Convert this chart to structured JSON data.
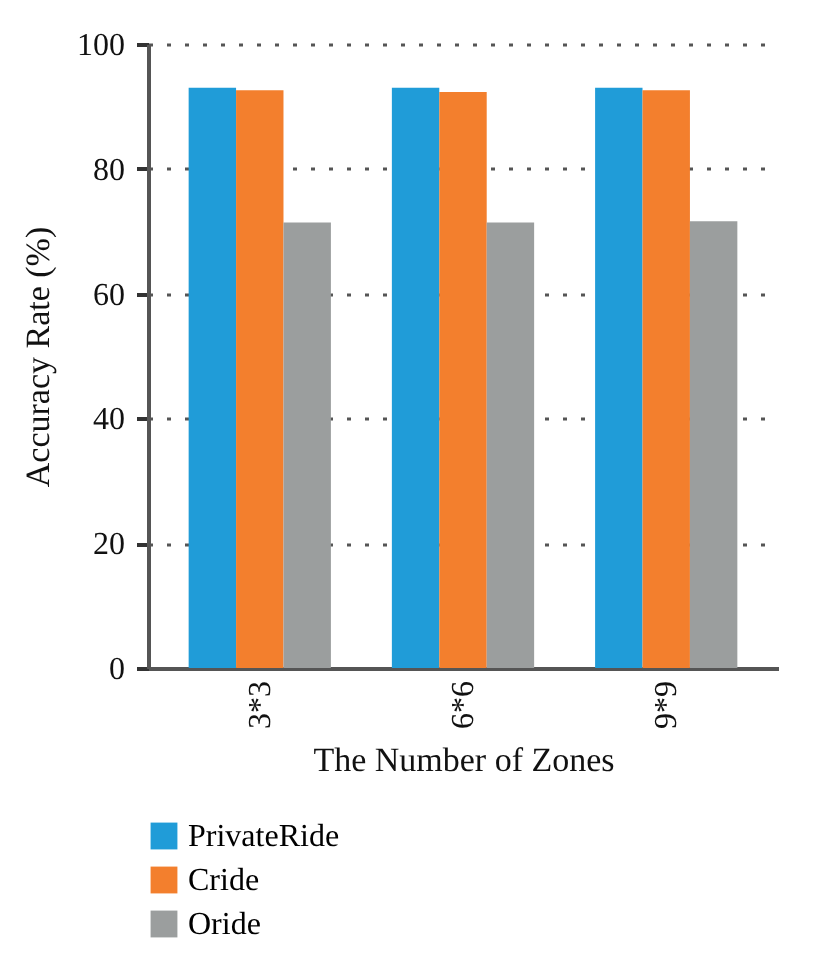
{
  "chart_data": {
    "type": "bar",
    "xlabel": "The Number of Zones",
    "ylabel": "Accuracy Rate (%)",
    "categories": [
      "3*3",
      "6*6",
      "9*9"
    ],
    "series": [
      {
        "name": "PrivateRide",
        "color": "#209cd8",
        "values": [
          93.0,
          93.0,
          93.0
        ]
      },
      {
        "name": "Cride",
        "color": "#f37f2d",
        "values": [
          92.6,
          92.3,
          92.6
        ]
      },
      {
        "name": "Oride",
        "color": "#9b9e9e",
        "values": [
          71.4,
          71.4,
          71.6
        ]
      }
    ],
    "ylim": [
      0,
      100
    ],
    "yticks": [
      0,
      20,
      40,
      60,
      80,
      100
    ],
    "grid": "y",
    "legend": "bottom left"
  }
}
